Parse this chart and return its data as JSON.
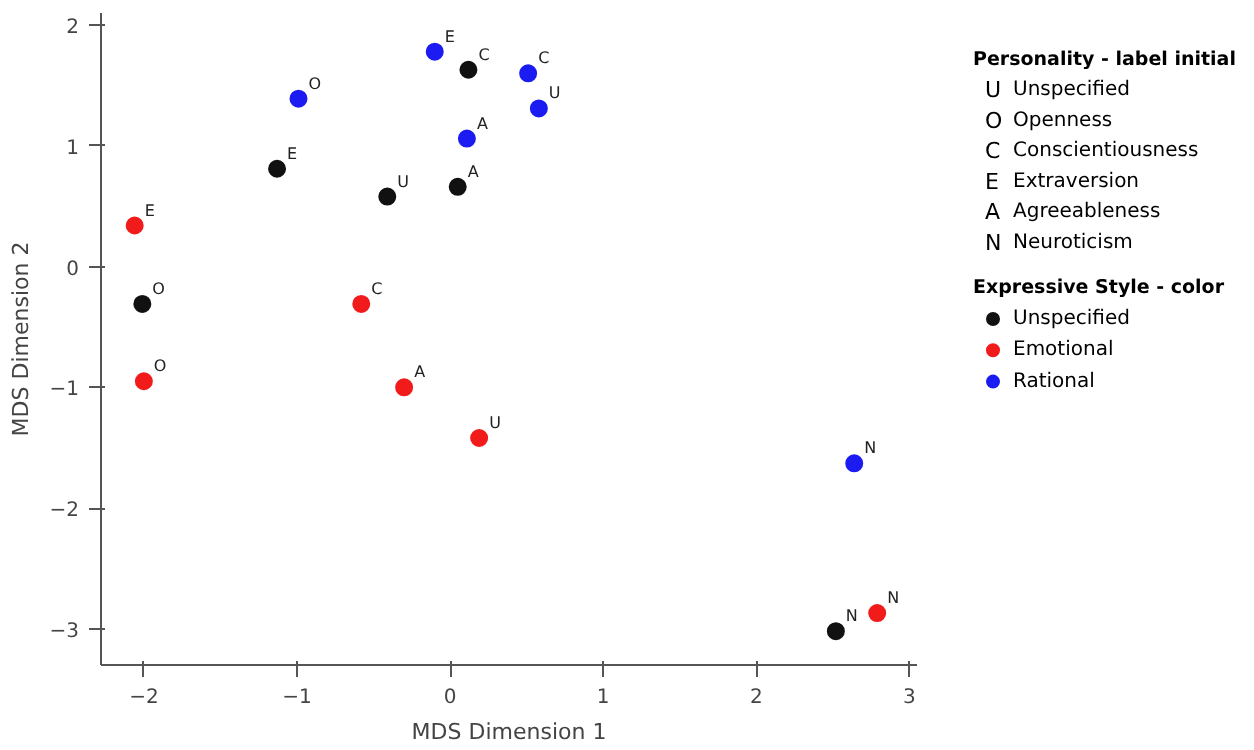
{
  "chart_data": {
    "type": "scatter",
    "xlabel": "MDS Dimension 1",
    "ylabel": "MDS Dimension 2",
    "xlim": [
      -2.28,
      3.05
    ],
    "ylim": [
      -3.3,
      2.1
    ],
    "xticks": [
      -2,
      -1,
      0,
      1,
      2,
      3
    ],
    "yticks": [
      -3,
      -2,
      -1,
      0,
      1,
      2
    ],
    "grid": false,
    "legend": "right",
    "legend_title": "Expressive Style - color",
    "marker": "circle",
    "annotations": [
      "Personality - label initial",
      "U Unspecified",
      "O Openness",
      "C Conscientiousness",
      "E Extraversion",
      "A Agreeableness",
      "N Neuroticism"
    ],
    "series": [
      {
        "name": "Unspecified",
        "color": "#111111",
        "x": [
          -2.01,
          -1.13,
          -0.41,
          0.05,
          0.12,
          2.52
        ],
        "values": [
          -0.31,
          0.81,
          0.58,
          0.66,
          1.63,
          -3.02
        ],
        "value_labels": [
          "O",
          "E",
          "U",
          "A",
          "C",
          "N"
        ]
      },
      {
        "name": "Emotional",
        "color": "#f21b1b",
        "x": [
          -2.06,
          -2.0,
          -0.58,
          -0.3,
          0.19,
          2.79
        ],
        "values": [
          0.34,
          -0.95,
          -0.31,
          -1.0,
          -1.42,
          -2.87
        ],
        "value_labels": [
          "E",
          "O",
          "C",
          "A",
          "U",
          "N"
        ]
      },
      {
        "name": "Rational",
        "color": "#1b1bf2",
        "x": [
          -0.99,
          -0.1,
          0.11,
          0.51,
          0.58,
          2.64
        ],
        "values": [
          1.39,
          1.78,
          1.06,
          1.6,
          1.31,
          -1.63
        ],
        "value_labels": [
          "O",
          "E",
          "A",
          "C",
          "U",
          "N"
        ]
      }
    ]
  }
}
